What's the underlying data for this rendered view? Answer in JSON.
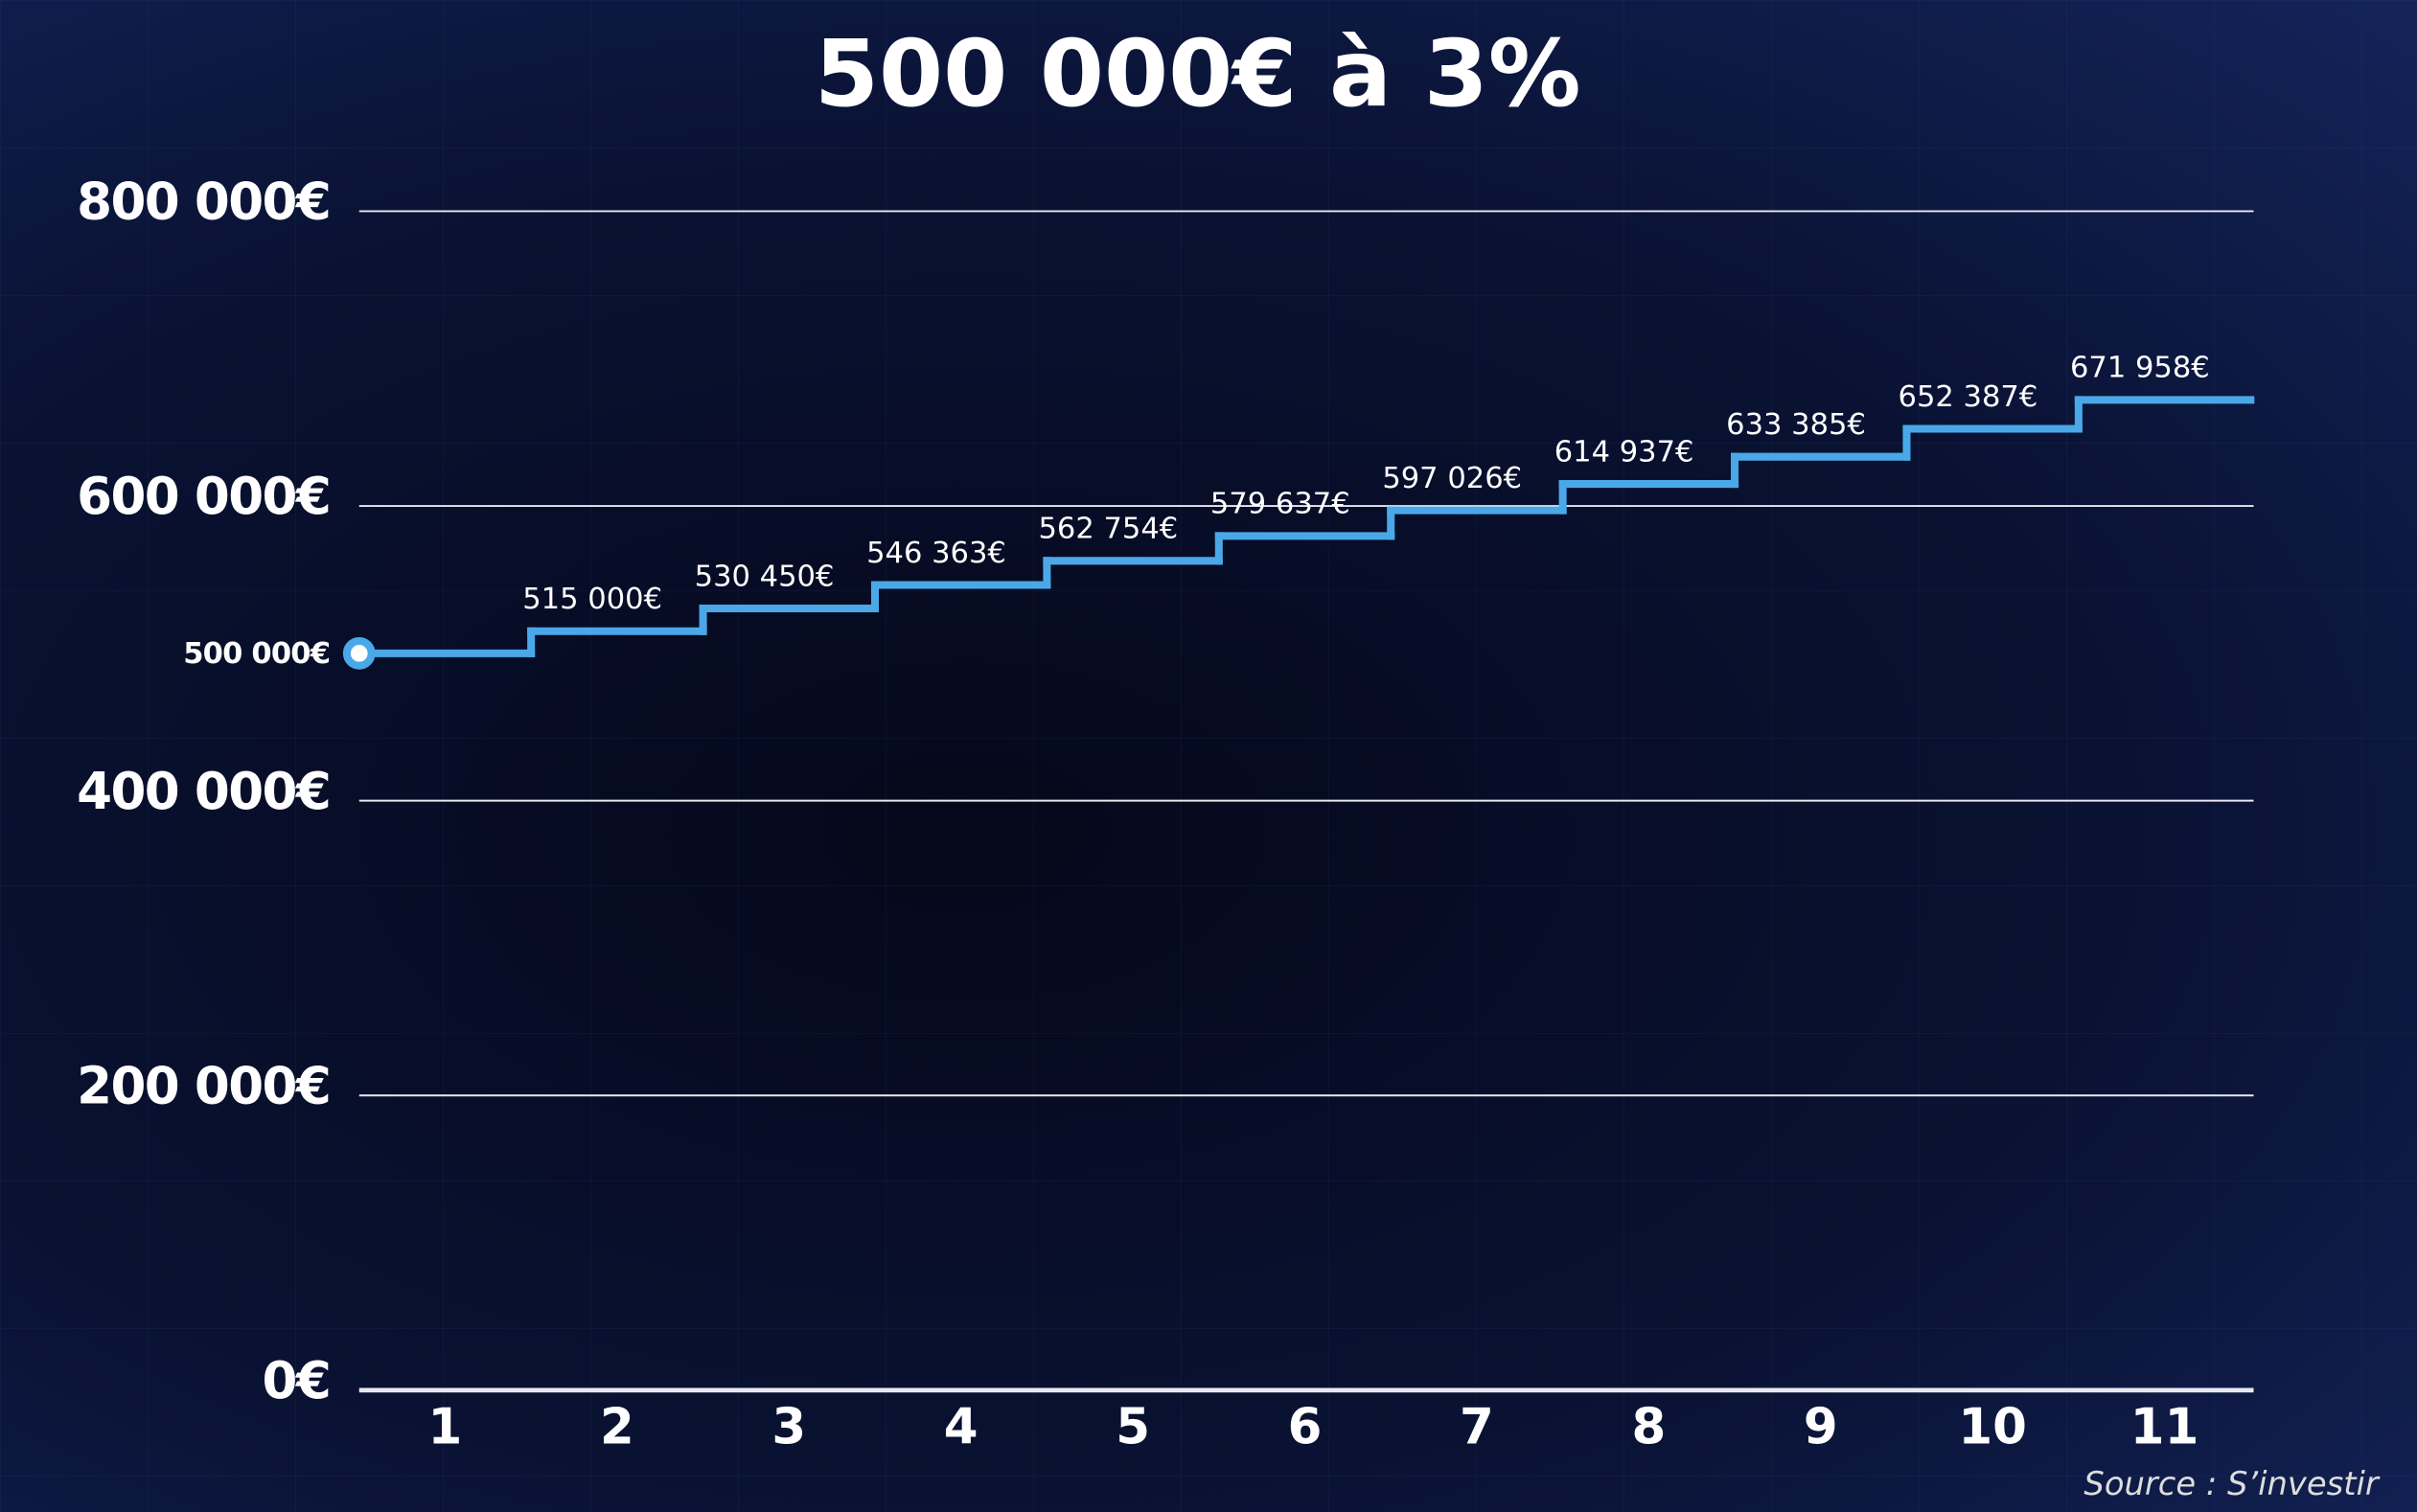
{
  "chart_data": {
    "type": "step",
    "title": "500 000€ à 3%",
    "categories": [
      "1",
      "2",
      "3",
      "4",
      "5",
      "6",
      "7",
      "8",
      "9",
      "10",
      "11"
    ],
    "values": [
      500000,
      515000,
      530450,
      546363,
      562754,
      579637,
      597026,
      614937,
      633385,
      652387,
      671958
    ],
    "value_labels": [
      "500 000€",
      "515 000€",
      "530 450€",
      "546 363€",
      "562 754€",
      "579 637€",
      "597 026€",
      "614 937€",
      "633 385€",
      "652 387€",
      "671 958€"
    ],
    "color": "#4aa8e8",
    "ylim": [
      0,
      800000
    ],
    "yticks": [
      {
        "value": 0,
        "label": "0€"
      },
      {
        "value": 200000,
        "label": "200 000€"
      },
      {
        "value": 400000,
        "label": "400 000€"
      },
      {
        "value": 600000,
        "label": "600 000€"
      },
      {
        "value": 800000,
        "label": "800 000€"
      }
    ],
    "grid": true,
    "source": "Source : S’investir"
  }
}
